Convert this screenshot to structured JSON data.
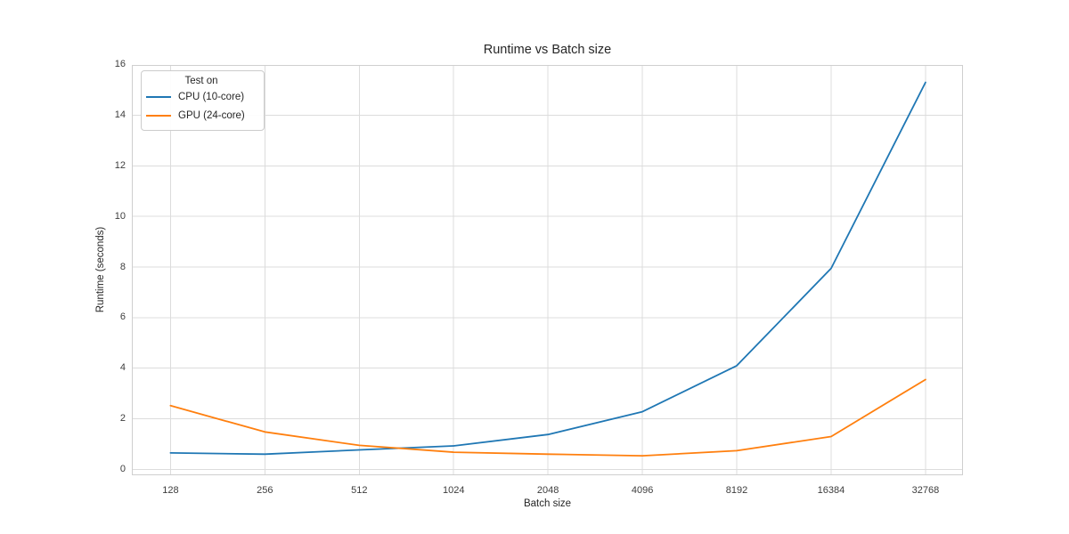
{
  "figure": {
    "title": "Runtime vs Batch size",
    "xlabel": "Batch size",
    "ylabel": "Runtime (seconds)"
  },
  "chart_data": {
    "type": "line",
    "title": "Runtime vs Batch size",
    "xlabel": "Batch size",
    "ylabel": "Runtime (seconds)",
    "x_scale": "log2",
    "categories": [
      "128",
      "256",
      "512",
      "1024",
      "2048",
      "4096",
      "8192",
      "16384",
      "32768"
    ],
    "series": [
      {
        "name": "CPU (10-core)",
        "color": "#1f77b4",
        "values": [
          0.65,
          0.6,
          0.77,
          0.93,
          1.38,
          2.28,
          4.1,
          7.95,
          15.3
        ]
      },
      {
        "name": "GPU (24-core)",
        "color": "#ff7f0e",
        "values": [
          2.52,
          1.48,
          0.95,
          0.68,
          0.6,
          0.54,
          0.74,
          1.3,
          3.55
        ]
      }
    ],
    "yticks": [
      0,
      2,
      4,
      6,
      8,
      10,
      12,
      14,
      16
    ],
    "ylim": [
      -0.21,
      16.02
    ],
    "grid": true,
    "legend": {
      "title": "Test on",
      "position": "upper left"
    },
    "colors": {
      "grid": "#dcdcdc",
      "frame": "#cfcfcf",
      "tick_text": "#3d3d3d",
      "text": "#262626",
      "background": "#ffffff"
    }
  }
}
